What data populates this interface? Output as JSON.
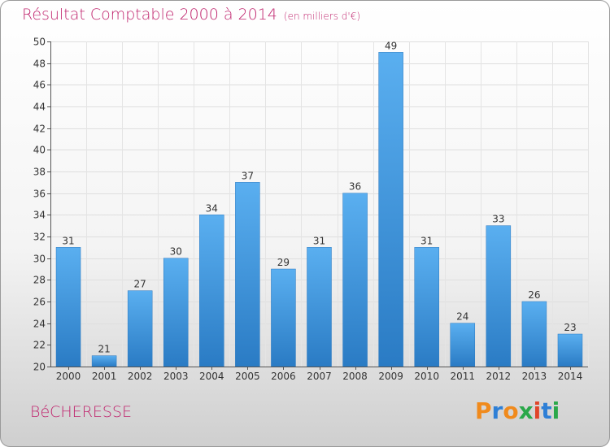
{
  "header": {
    "title": "Résultat Comptable 2000 à 2014",
    "unit": "(en milliers d'€)"
  },
  "footer": {
    "commune": "BéCHERESSE",
    "logo": "Proxiti"
  },
  "colors": {
    "title": "#c0256e",
    "bar_top": "#5aaff0",
    "bar_bottom": "#2a7bc4",
    "logo": [
      "#f08a1c",
      "#2e7fd6",
      "#f08a1c",
      "#2aa84a",
      "#e0452a",
      "#2e7fd6",
      "#2aa84a"
    ]
  },
  "chart_data": {
    "type": "bar",
    "title": "Résultat Comptable 2000 à 2014",
    "ylabel": "en milliers d'€",
    "xlabel": "",
    "categories": [
      "2000",
      "2001",
      "2002",
      "2003",
      "2004",
      "2005",
      "2006",
      "2007",
      "2008",
      "2009",
      "2010",
      "2011",
      "2012",
      "2013",
      "2014"
    ],
    "values": [
      31,
      21,
      27,
      30,
      34,
      37,
      29,
      31,
      36,
      49,
      31,
      24,
      33,
      26,
      23
    ],
    "ylim": [
      20,
      50
    ],
    "yticks": [
      20,
      22,
      24,
      26,
      28,
      30,
      32,
      34,
      36,
      38,
      40,
      42,
      44,
      46,
      48,
      50
    ],
    "grid": true
  }
}
